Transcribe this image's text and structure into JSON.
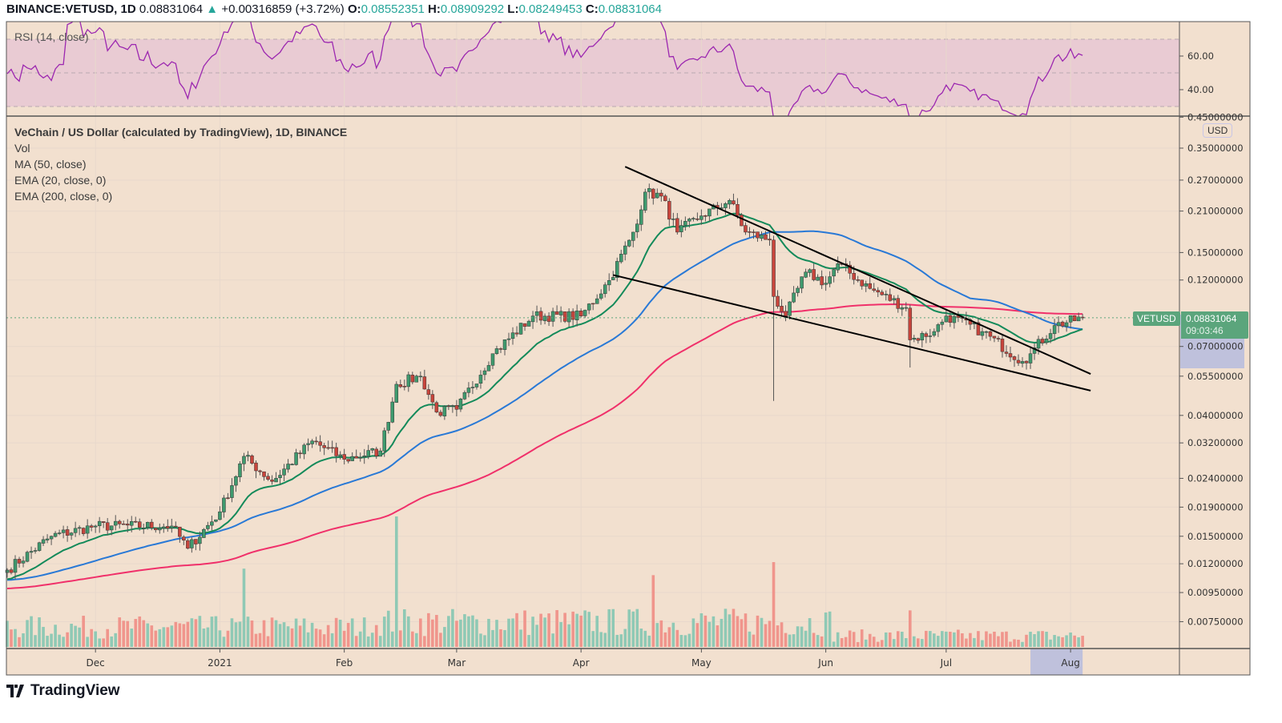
{
  "header": {
    "symbol": "BINANCE:VETUSD, 1D",
    "last": "0.08831064",
    "change": "+0.00316859 (+3.72%)",
    "o_label": "O:",
    "o": "0.08552351",
    "h_label": "H:",
    "h": "0.08909292",
    "l_label": "L:",
    "l": "0.08249453",
    "c_label": "C:",
    "c": "0.08831064",
    "direction_icon": "triangle-up-icon"
  },
  "legend": {
    "title": "VeChain / US Dollar (calculated by TradingView), 1D, BINANCE",
    "items": [
      "Vol",
      "MA (50, close)",
      "EMA (20, close, 0)",
      "EMA (200, close, 0)"
    ]
  },
  "rsi": {
    "label": "RSI (14, close)",
    "ticks": [
      "60.00",
      "40.00"
    ],
    "band": [
      30,
      70
    ],
    "color": "#9c27b0"
  },
  "price_axis": {
    "currency": "USD",
    "ticks": [
      "0.45000000",
      "0.35000000",
      "0.27000000",
      "0.21000000",
      "0.15000000",
      "0.12000000",
      "0.07000000",
      "0.05500000",
      "0.04000000",
      "0.03200000",
      "0.02400000",
      "0.01900000",
      "0.01500000",
      "0.01200000",
      "0.00950000",
      "0.00750000"
    ],
    "symbol_tag": "VETUSD",
    "last_price": "0.08831064",
    "countdown": "09:03:46"
  },
  "time_axis": {
    "ticks": [
      {
        "label": "Dec",
        "date": "2020-12-01"
      },
      {
        "label": "2021",
        "date": "2021-01-01"
      },
      {
        "label": "Feb",
        "date": "2021-02-01"
      },
      {
        "label": "Mar",
        "date": "2021-03-01"
      },
      {
        "label": "Apr",
        "date": "2021-04-01"
      },
      {
        "label": "May",
        "date": "2021-05-01"
      },
      {
        "label": "Jun",
        "date": "2021-06-01"
      },
      {
        "label": "Jul",
        "date": "2021-07-01"
      },
      {
        "label": "Aug",
        "date": "2021-08-01"
      }
    ],
    "highlight_range": [
      "2021-07-22",
      "2021-08-04"
    ]
  },
  "brand": "TradingView",
  "colors": {
    "background": "#f2e0cf",
    "up": "#26a69a",
    "down": "#ef5350",
    "ma50": "#2979d6",
    "ema20": "#138a5a",
    "ema200": "#f0306a",
    "rsi": "#9c27b0",
    "highlight": "#bfc1dc"
  },
  "chart_data": {
    "type": "candlestick",
    "scale": "log",
    "series_name": "VETUSD",
    "x_range": [
      "2020-11-09",
      "2021-08-04"
    ],
    "y_range": [
      0.0065,
      0.45
    ],
    "close_keypoints": [
      [
        "2020-11-09",
        0.0114
      ],
      [
        "2020-11-20",
        0.015
      ],
      [
        "2020-12-01",
        0.0163
      ],
      [
        "2020-12-20",
        0.0163
      ],
      [
        "2020-12-24",
        0.0136
      ],
      [
        "2021-01-01",
        0.0183
      ],
      [
        "2021-01-07",
        0.0287
      ],
      [
        "2021-01-14",
        0.0234
      ],
      [
        "2021-01-24",
        0.0325
      ],
      [
        "2021-02-01",
        0.028
      ],
      [
        "2021-02-10",
        0.03
      ],
      [
        "2021-02-14",
        0.0515
      ],
      [
        "2021-02-20",
        0.055
      ],
      [
        "2021-02-24",
        0.0411
      ],
      [
        "2021-03-01",
        0.042
      ],
      [
        "2021-03-10",
        0.066
      ],
      [
        "2021-03-20",
        0.0896
      ],
      [
        "2021-04-01",
        0.0896
      ],
      [
        "2021-04-08",
        0.1196
      ],
      [
        "2021-04-14",
        0.177
      ],
      [
        "2021-04-17",
        0.245
      ],
      [
        "2021-04-21",
        0.237
      ],
      [
        "2021-04-25",
        0.177
      ],
      [
        "2021-05-01",
        0.202
      ],
      [
        "2021-05-08",
        0.229
      ],
      [
        "2021-05-12",
        0.177
      ],
      [
        "2021-05-18",
        0.166
      ],
      [
        "2021-05-19",
        0.105
      ],
      [
        "2021-05-22",
        0.0896
      ],
      [
        "2021-05-27",
        0.128
      ],
      [
        "2021-06-01",
        0.117
      ],
      [
        "2021-06-04",
        0.137
      ],
      [
        "2021-06-12",
        0.112
      ],
      [
        "2021-06-21",
        0.096
      ],
      [
        "2021-06-22",
        0.0738
      ],
      [
        "2021-06-28",
        0.079
      ],
      [
        "2021-07-01",
        0.0896
      ],
      [
        "2021-07-10",
        0.079
      ],
      [
        "2021-07-20",
        0.062
      ],
      [
        "2021-07-22",
        0.066
      ],
      [
        "2021-07-28",
        0.083
      ],
      [
        "2021-08-04",
        0.08831064
      ]
    ],
    "notable_lows": [
      [
        "2021-05-19",
        0.045
      ],
      [
        "2021-06-22",
        0.059
      ]
    ],
    "volume_spikes": [
      [
        "2021-02-14",
        1.0
      ],
      [
        "2021-05-19",
        0.65
      ],
      [
        "2021-01-07",
        0.6
      ],
      [
        "2021-04-19",
        0.55
      ],
      [
        "2021-06-22",
        0.28
      ]
    ],
    "indicators": [
      "MA 50",
      "EMA 20",
      "EMA 200",
      "RSI 14",
      "Volume"
    ],
    "trendlines": [
      {
        "from": [
          "2021-04-12",
          0.301
        ],
        "to": [
          "2021-08-06",
          0.056
        ]
      },
      {
        "from": [
          "2021-04-09",
          0.125
        ],
        "to": [
          "2021-08-06",
          0.0489
        ]
      }
    ]
  }
}
